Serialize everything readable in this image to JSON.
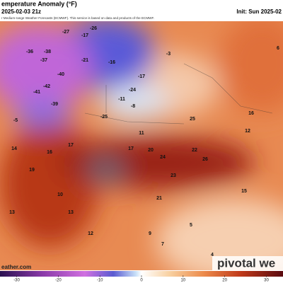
{
  "header": {
    "title": "emperature Anomaly (°F)",
    "valid": "2025-02-03 21z",
    "init": "Init: Sun 2025-02",
    "credit": "r Medium-range Weather Forecasts (ECMWF). This service is based on data and products of the ECMWF."
  },
  "map_labels": [
    -36,
    -38,
    -37,
    -40,
    -41,
    -42,
    -39,
    -27,
    -26,
    -17,
    -21,
    -16,
    -25,
    -24,
    -17,
    -3,
    -11,
    -8,
    -5,
    17,
    16,
    14,
    19,
    13,
    12,
    13,
    10,
    17,
    20,
    24,
    22,
    26,
    23,
    21,
    15,
    12,
    16,
    11,
    9,
    5,
    4,
    7,
    25,
    6
  ],
  "colorbar": {
    "range": [
      -34,
      34
    ],
    "ticks": [
      -30,
      -20,
      -10,
      0,
      10,
      20,
      30
    ]
  },
  "footer": {
    "site": "eather.com",
    "logo": "pivotal we"
  }
}
